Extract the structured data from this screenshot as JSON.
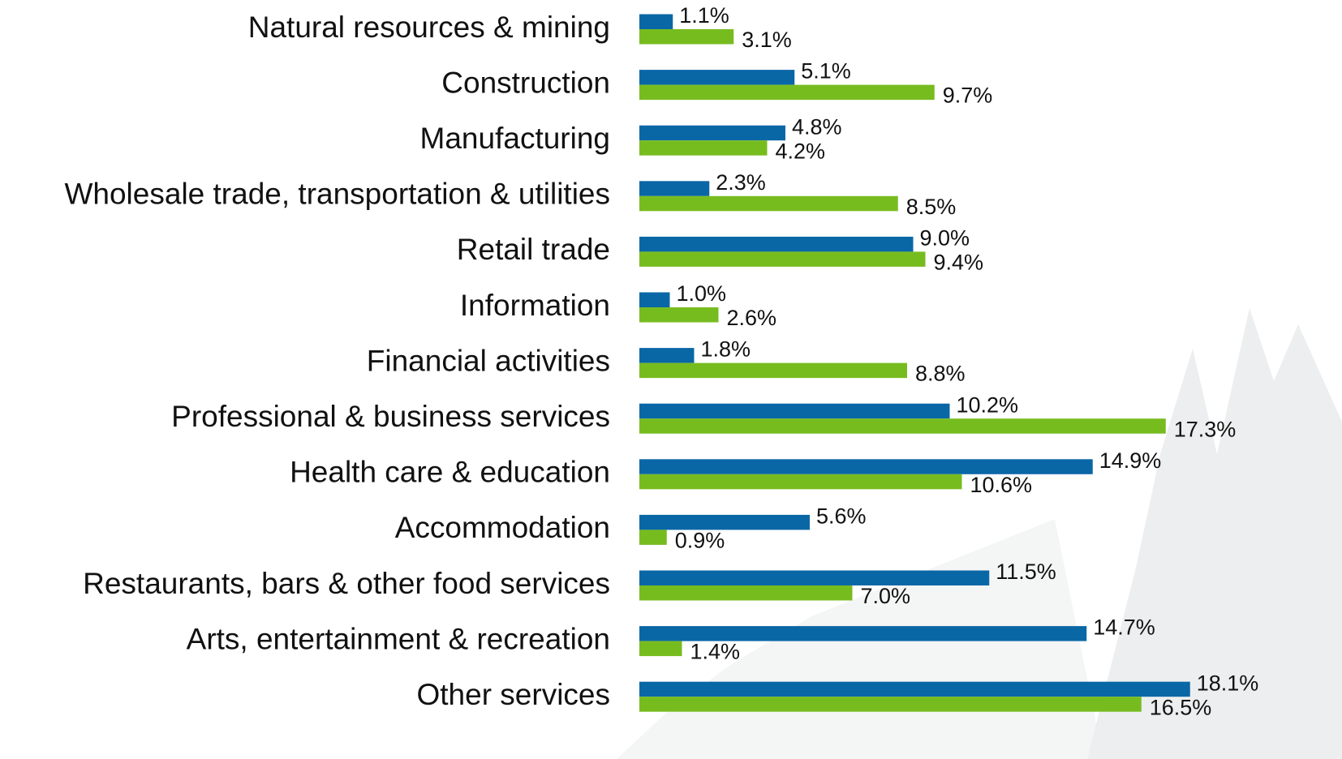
{
  "chart_data": {
    "type": "bar",
    "orientation": "horizontal",
    "categories": [
      "Natural resources & mining",
      "Construction",
      "Manufacturing",
      "Wholesale trade, transportation & utilities",
      "Retail trade",
      "Information",
      "Financial activities",
      "Professional & business services",
      "Health care & education",
      "Accommodation",
      "Restaurants, bars & other food services",
      "Arts, entertainment & recreation",
      "Other services"
    ],
    "series": [
      {
        "color": "#0a67a6",
        "values": [
          1.1,
          5.1,
          4.8,
          2.3,
          9.0,
          1.0,
          1.8,
          10.2,
          14.9,
          5.6,
          11.5,
          14.7,
          18.1
        ],
        "value_labels": [
          "1.1%",
          "5.1%",
          "4.8%",
          "2.3%",
          "9.0%",
          "1.0%",
          "1.8%",
          "10.2%",
          "14.9%",
          "5.6%",
          "11.5%",
          "14.7%",
          "18.1%"
        ]
      },
      {
        "color": "#77bc1f",
        "values": [
          3.1,
          9.7,
          4.2,
          8.5,
          9.4,
          2.6,
          8.8,
          17.3,
          10.6,
          0.9,
          7.0,
          1.4,
          16.5
        ],
        "value_labels": [
          "3.1%",
          "9.7%",
          "4.2%",
          "8.5%",
          "9.4%",
          "2.6%",
          "8.8%",
          "17.3%",
          "10.6%",
          "0.9%",
          "7.0%",
          "1.4%",
          "16.5%"
        ]
      }
    ]
  }
}
